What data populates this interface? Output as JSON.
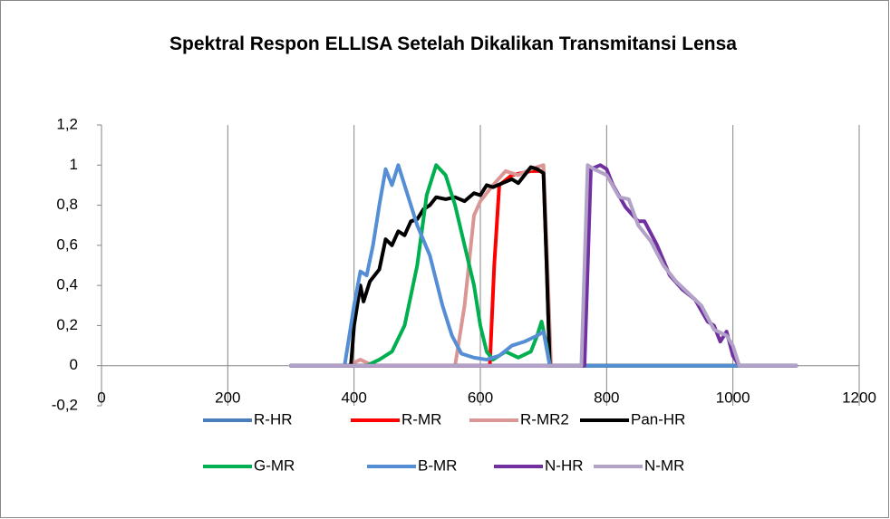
{
  "chart_data": {
    "type": "line",
    "title": "Spektral Respon ELLISA Setelah Dikalikan Transmitansi Lensa",
    "xlim": [
      0,
      1200
    ],
    "xticks": [
      0,
      200,
      400,
      600,
      800,
      1000,
      1200
    ],
    "ylim": [
      -0.2,
      1.2
    ],
    "yticks": [
      {
        "value": -0.2,
        "label": "-0,2"
      },
      0,
      {
        "value": 0.2,
        "label": "0,2"
      },
      {
        "value": 0.4,
        "label": "0,4"
      },
      {
        "value": 0.6,
        "label": "0,6"
      },
      {
        "value": 0.8,
        "label": "0,8"
      },
      1,
      {
        "value": 1.2,
        "label": "1,2"
      }
    ],
    "grid": true,
    "legend": "bottom",
    "series": [
      {
        "name": "R-HR",
        "color": "#4a7ebb",
        "x": [
          300,
          700,
          1100
        ],
        "values": [
          0,
          0,
          0
        ]
      },
      {
        "name": "R-MR",
        "color": "#ff0000",
        "x": [
          300,
          615,
          622,
          630,
          650,
          680,
          700,
          705,
          710,
          1100
        ],
        "values": [
          0,
          0,
          0.5,
          0.9,
          0.95,
          0.97,
          0.97,
          0.5,
          0,
          0
        ]
      },
      {
        "name": "R-MR2",
        "color": "#d99694",
        "x": [
          300,
          390,
          410,
          430,
          560,
          575,
          590,
          600,
          620,
          640,
          660,
          680,
          700,
          705,
          712,
          1100
        ],
        "values": [
          0,
          0,
          0.03,
          0,
          0,
          0.3,
          0.75,
          0.82,
          0.9,
          0.97,
          0.95,
          0.98,
          1,
          0.6,
          0,
          0
        ]
      },
      {
        "name": "Pan-HR",
        "color": "#000000",
        "x": [
          300,
          395,
          400,
          410,
          415,
          425,
          440,
          450,
          460,
          470,
          480,
          490,
          500,
          510,
          520,
          530,
          545,
          560,
          575,
          590,
          600,
          610,
          620,
          635,
          650,
          660,
          670,
          680,
          690,
          700,
          705,
          710,
          1100
        ],
        "values": [
          0,
          0,
          0.2,
          0.4,
          0.32,
          0.42,
          0.48,
          0.63,
          0.6,
          0.67,
          0.65,
          0.72,
          0.73,
          0.78,
          0.8,
          0.84,
          0.83,
          0.84,
          0.82,
          0.86,
          0.85,
          0.9,
          0.89,
          0.91,
          0.93,
          0.91,
          0.95,
          0.99,
          0.98,
          0.96,
          0.5,
          0,
          0
        ]
      },
      {
        "name": "G-MR",
        "color": "#00b050",
        "x": [
          300,
          420,
          440,
          460,
          480,
          500,
          515,
          530,
          545,
          560,
          575,
          590,
          600,
          610,
          620,
          640,
          660,
          680,
          690,
          697,
          705,
          710,
          1100
        ],
        "values": [
          0,
          0,
          0.03,
          0.07,
          0.2,
          0.5,
          0.85,
          1,
          0.95,
          0.8,
          0.6,
          0.4,
          0.2,
          0.07,
          0.03,
          0.07,
          0.04,
          0.07,
          0.15,
          0.22,
          0.1,
          0,
          0
        ]
      },
      {
        "name": "B-MR",
        "color": "#558ed5",
        "x": [
          300,
          385,
          400,
          410,
          420,
          430,
          440,
          450,
          460,
          470,
          480,
          500,
          520,
          540,
          555,
          570,
          590,
          610,
          630,
          650,
          670,
          690,
          700,
          710,
          1100
        ],
        "values": [
          0,
          0,
          0.3,
          0.47,
          0.45,
          0.6,
          0.8,
          0.98,
          0.9,
          1,
          0.9,
          0.7,
          0.55,
          0.3,
          0.15,
          0.06,
          0.04,
          0.03,
          0.05,
          0.1,
          0.12,
          0.15,
          0.17,
          0,
          0
        ]
      },
      {
        "name": "N-HR",
        "color": "#7030a0",
        "x": [
          300,
          765,
          775,
          790,
          800,
          810,
          830,
          850,
          860,
          880,
          900,
          920,
          940,
          960,
          970,
          980,
          990,
          1000,
          1010,
          1100
        ],
        "values": [
          0,
          0,
          0.98,
          1,
          0.98,
          0.9,
          0.79,
          0.72,
          0.72,
          0.6,
          0.45,
          0.38,
          0.33,
          0.22,
          0.2,
          0.12,
          0.17,
          0.05,
          0,
          0
        ]
      },
      {
        "name": "N-MR",
        "color": "#b3a2c7",
        "x": [
          300,
          760,
          770,
          780,
          800,
          820,
          835,
          850,
          870,
          890,
          910,
          930,
          950,
          970,
          990,
          1000,
          1010,
          1100
        ],
        "values": [
          0,
          0,
          1,
          0.98,
          0.95,
          0.84,
          0.83,
          0.7,
          0.62,
          0.5,
          0.42,
          0.36,
          0.3,
          0.18,
          0.15,
          0.1,
          0,
          0
        ]
      }
    ]
  }
}
